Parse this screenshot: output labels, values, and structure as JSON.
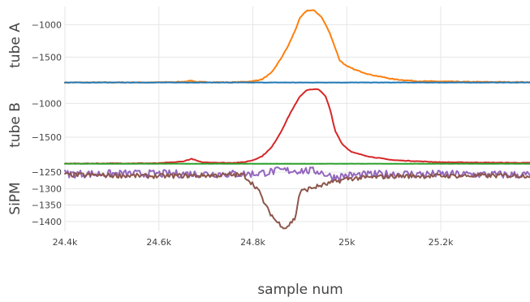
{
  "chart_data": {
    "type": "line",
    "title": "",
    "xlabel": "sample num",
    "x_tick_labels": [
      "24.4k",
      "24.6k",
      "24.8k",
      "25k",
      "25.2k"
    ],
    "x_ticks": [
      24400,
      24600,
      24800,
      25000,
      25200
    ],
    "xlim": [
      24400,
      25390
    ],
    "grid": true,
    "legend": "none",
    "subplots": [
      {
        "ylabel": "tube A",
        "ylim": [
          -1920,
          -720
        ],
        "y_ticks": [
          -1000,
          -1500
        ],
        "y_tick_labels": [
          "−1000",
          "−1500"
        ],
        "series": [
          {
            "color": "#ff7f0e",
            "points": [
              [
                24400,
                -1890
              ],
              [
                24600,
                -1888
              ],
              [
                24650,
                -1880
              ],
              [
                24670,
                -1860
              ],
              [
                24680,
                -1882
              ],
              [
                24750,
                -1888
              ],
              [
                24780,
                -1880
              ],
              [
                24800,
                -1870
              ],
              [
                24820,
                -1840
              ],
              [
                24840,
                -1740
              ],
              [
                24860,
                -1520
              ],
              [
                24875,
                -1330
              ],
              [
                24890,
                -1090
              ],
              [
                24900,
                -900
              ],
              [
                24915,
                -780
              ],
              [
                24930,
                -780
              ],
              [
                24945,
                -870
              ],
              [
                24955,
                -1000
              ],
              [
                24965,
                -1150
              ],
              [
                24975,
                -1350
              ],
              [
                24985,
                -1550
              ],
              [
                25000,
                -1640
              ],
              [
                25020,
                -1700
              ],
              [
                25050,
                -1770
              ],
              [
                25100,
                -1840
              ],
              [
                25150,
                -1870
              ],
              [
                25250,
                -1880
              ],
              [
                25390,
                -1885
              ]
            ],
            "noise": 6
          },
          {
            "color": "#1f77b4",
            "points": [
              [
                24400,
                -1890
              ],
              [
                25390,
                -1890
              ]
            ],
            "noise": 2
          }
        ]
      },
      {
        "ylabel": "tube B",
        "ylim": [
          -1920,
          -720
        ],
        "y_ticks": [
          -1000,
          -1500
        ],
        "y_tick_labels": [
          "−1000",
          "−1500"
        ],
        "series": [
          {
            "color": "#d62728",
            "points": [
              [
                24400,
                -1890
              ],
              [
                24600,
                -1885
              ],
              [
                24650,
                -1860
              ],
              [
                24670,
                -1820
              ],
              [
                24690,
                -1870
              ],
              [
                24750,
                -1880
              ],
              [
                24780,
                -1870
              ],
              [
                24800,
                -1840
              ],
              [
                24820,
                -1780
              ],
              [
                24840,
                -1650
              ],
              [
                24860,
                -1420
              ],
              [
                24880,
                -1140
              ],
              [
                24900,
                -900
              ],
              [
                24915,
                -800
              ],
              [
                24940,
                -790
              ],
              [
                24955,
                -900
              ],
              [
                24965,
                -1100
              ],
              [
                24975,
                -1400
              ],
              [
                24990,
                -1600
              ],
              [
                25010,
                -1720
              ],
              [
                25050,
                -1790
              ],
              [
                25100,
                -1840
              ],
              [
                25200,
                -1870
              ],
              [
                25390,
                -1880
              ]
            ],
            "noise": 4
          },
          {
            "color": "#2ca02c",
            "points": [
              [
                24400,
                -1892
              ],
              [
                25390,
                -1892
              ]
            ],
            "noise": 1
          }
        ]
      },
      {
        "ylabel": "SiPM",
        "ylim": [
          -1430,
          -1230
        ],
        "y_ticks": [
          -1250,
          -1300,
          -1350,
          -1400
        ],
        "y_tick_labels": [
          "−1250",
          "−1300",
          "−1350",
          "−1400"
        ],
        "series": [
          {
            "color": "#9467bd",
            "points": [
              [
                24400,
                -1255
              ],
              [
                24600,
                -1255
              ],
              [
                24800,
                -1255
              ],
              [
                24860,
                -1245
              ],
              [
                24900,
                -1245
              ],
              [
                24940,
                -1247
              ],
              [
                24970,
                -1265
              ],
              [
                25000,
                -1260
              ],
              [
                25100,
                -1255
              ],
              [
                25390,
                -1258
              ]
            ],
            "noise": 12
          },
          {
            "color": "#8c564b",
            "points": [
              [
                24400,
                -1258
              ],
              [
                24600,
                -1262
              ],
              [
                24780,
                -1258
              ],
              [
                24810,
                -1300
              ],
              [
                24830,
                -1360
              ],
              [
                24850,
                -1400
              ],
              [
                24870,
                -1420
              ],
              [
                24890,
                -1390
              ],
              [
                24900,
                -1310
              ],
              [
                24920,
                -1300
              ],
              [
                24960,
                -1285
              ],
              [
                25000,
                -1270
              ],
              [
                25100,
                -1262
              ],
              [
                25390,
                -1260
              ]
            ],
            "noise": 7
          }
        ]
      }
    ]
  }
}
